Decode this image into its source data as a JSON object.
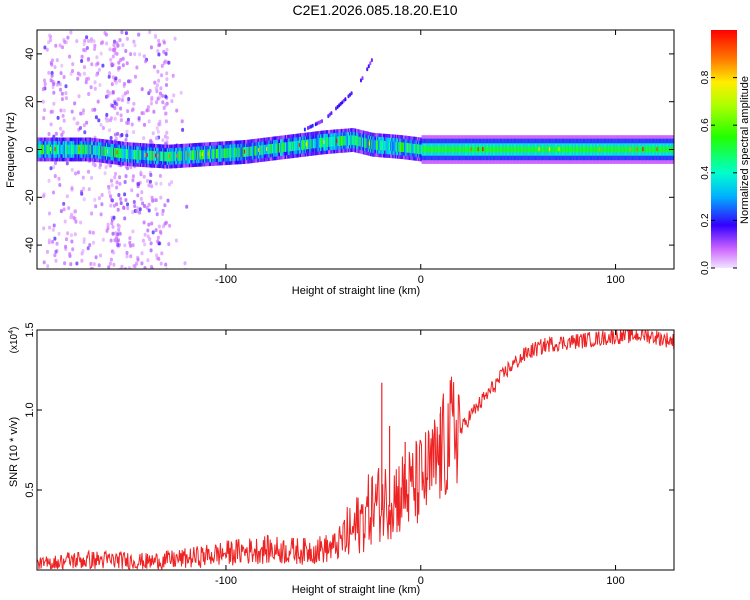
{
  "title": "C2E1.2026.085.18.20.E10",
  "chart_data": [
    {
      "type": "heatmap",
      "title": "C2E1.2026.085.18.20.E10",
      "xlabel": "Height of straight line (km)",
      "ylabel": "Frequency (Hz)",
      "xlim": [
        -197,
        130
      ],
      "ylim": [
        -50,
        50
      ],
      "xticks": [
        -100,
        0,
        100
      ],
      "yticks": [
        -40,
        -20,
        0,
        20,
        40
      ],
      "colorbar": {
        "label": "Normalized spectral amplitude",
        "range": [
          0,
          1
        ],
        "ticks": [
          0.0,
          0.2,
          0.4,
          0.6,
          0.8
        ],
        "tick_labels": [
          "0.0",
          "0.2",
          "0.4",
          "0.6",
          "0.8"
        ]
      },
      "ridge": {
        "x": [
          -197,
          -170,
          -150,
          -130,
          -110,
          -90,
          -70,
          -50,
          -35,
          -25,
          -10,
          0,
          20,
          50,
          90,
          130
        ],
        "freq": [
          0,
          0,
          -2,
          -3,
          -2,
          -1,
          1,
          3,
          4,
          2,
          1,
          0,
          0,
          0,
          0,
          0
        ]
      },
      "branch": {
        "x": [
          -60,
          -50,
          -45,
          -40,
          -35,
          -30,
          -25
        ],
        "freq": [
          8,
          12,
          16,
          20,
          24,
          30,
          38
        ]
      }
    },
    {
      "type": "line",
      "xlabel": "Height of straight line (km)",
      "ylabel": "SNR (10 * v/v)",
      "multiplier": "(x10",
      "multiplier_exp": "4",
      "multiplier_close": ")",
      "xlim": [
        -197,
        130
      ],
      "ylim": [
        0,
        1.5
      ],
      "xticks": [
        -100,
        0,
        100
      ],
      "yticks": [
        0.5,
        1.0,
        1.5
      ],
      "ytick_labels": [
        "0.5",
        "1.0",
        "1.5"
      ],
      "color": "#ee2222",
      "series": [
        {
          "name": "SNR",
          "x": [
            -197,
            -180,
            -160,
            -140,
            -120,
            -100,
            -80,
            -60,
            -45,
            -35,
            -25,
            -15,
            -5,
            5,
            15,
            25,
            35,
            45,
            55,
            65,
            80,
            100,
            115,
            130
          ],
          "y": [
            0.02,
            0.05,
            0.05,
            0.04,
            0.06,
            0.09,
            0.11,
            0.1,
            0.12,
            0.2,
            0.35,
            0.4,
            0.45,
            0.55,
            0.75,
            0.95,
            1.1,
            1.25,
            1.35,
            1.4,
            1.42,
            1.45,
            1.46,
            1.42
          ]
        }
      ],
      "spikes": [
        {
          "x": -20,
          "y": 1.17
        },
        {
          "x": -16,
          "y": 0.9
        },
        {
          "x": -8,
          "y": 0.8
        },
        {
          "x": 10,
          "y": 0.98
        }
      ]
    }
  ]
}
